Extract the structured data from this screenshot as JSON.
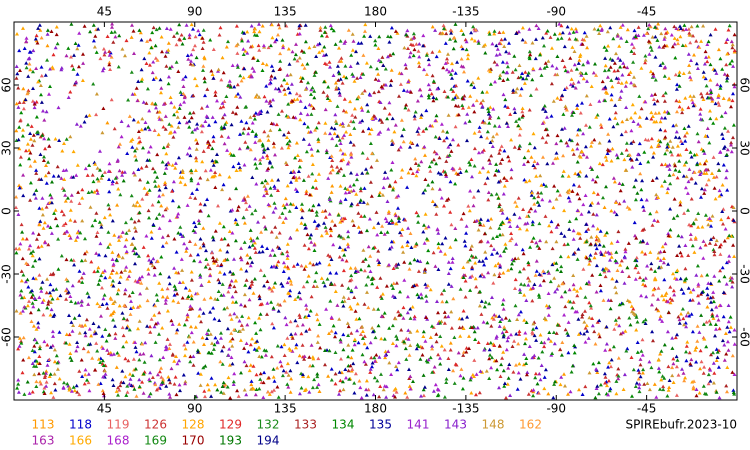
{
  "chart_data": {
    "type": "map-scatter",
    "footer": "SPIREbufr.2023-10",
    "xlim": [
      0,
      360
    ],
    "ylim": [
      -90,
      90
    ],
    "xticks": [
      45,
      90,
      135,
      180,
      -135,
      -90,
      -45
    ],
    "yticks": [
      -60,
      -30,
      0,
      30,
      60
    ],
    "series": [
      {
        "name": "113",
        "color": "#ff9900"
      },
      {
        "name": "118",
        "color": "#0000cc"
      },
      {
        "name": "119",
        "color": "#e86060"
      },
      {
        "name": "126",
        "color": "#cc3333"
      },
      {
        "name": "128",
        "color": "#ffa500"
      },
      {
        "name": "129",
        "color": "#e02828"
      },
      {
        "name": "132",
        "color": "#1a8a1a"
      },
      {
        "name": "133",
        "color": "#aa2222"
      },
      {
        "name": "134",
        "color": "#008800"
      },
      {
        "name": "135",
        "color": "#000099"
      },
      {
        "name": "141",
        "color": "#9922cc"
      },
      {
        "name": "143",
        "color": "#8822cc"
      },
      {
        "name": "148",
        "color": "#cc9933"
      },
      {
        "name": "162",
        "color": "#ff9933"
      },
      {
        "name": "163",
        "color": "#aa22aa"
      },
      {
        "name": "166",
        "color": "#ffaa00"
      },
      {
        "name": "168",
        "color": "#aa22cc"
      },
      {
        "name": "169",
        "color": "#118811"
      },
      {
        "name": "170",
        "color": "#990000"
      },
      {
        "name": "193",
        "color": "#007700"
      },
      {
        "name": "194",
        "color": "#000088"
      }
    ]
  }
}
